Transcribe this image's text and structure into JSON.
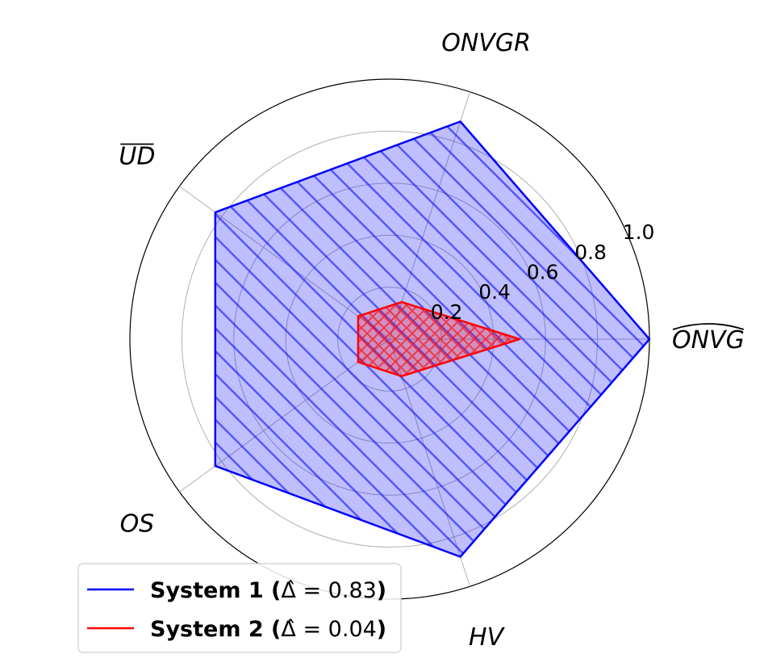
{
  "chart_data": {
    "type": "radar",
    "axes": [
      {
        "label": "ONVG",
        "decoration": "hat"
      },
      {
        "label": "ONVGR",
        "decoration": "none"
      },
      {
        "label": "UD",
        "decoration": "overline"
      },
      {
        "label": "OS",
        "decoration": "none"
      },
      {
        "label": "HV",
        "decoration": "none"
      }
    ],
    "rlim": [
      0,
      1.0
    ],
    "rticks": [
      0.2,
      0.4,
      0.6,
      0.8,
      1.0
    ],
    "rtick_labels": [
      "0.2",
      "0.4",
      "0.6",
      "0.8",
      "1.0"
    ],
    "grid": true,
    "legend_position": "lower-left",
    "series": [
      {
        "name": "System 1",
        "legend_value": "= 0.83",
        "values": [
          1.0,
          0.88,
          0.83,
          0.83,
          0.88
        ],
        "color": "#0000ff",
        "fill": "#0000ff",
        "hatch": "diagonal"
      },
      {
        "name": "System 2",
        "legend_value": "= 0.04",
        "values": [
          0.5,
          0.15,
          0.15,
          0.15,
          0.15
        ],
        "color": "#ff0000",
        "fill": "#ff0000",
        "hatch": "cross"
      }
    ]
  }
}
